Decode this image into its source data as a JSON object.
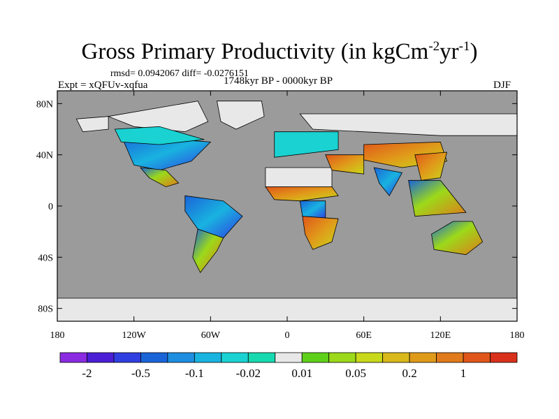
{
  "title": {
    "main": "Gross Primary Productivity (in kgCm",
    "exp1": "-2",
    "mid": "yr",
    "exp2": "-1",
    "close": ")"
  },
  "subtitle": {
    "stats": "rmsd= 0.0942067 diff= -0.0276151",
    "experiment": "Expt = xQFUv-xqfua",
    "period": "1748kyr BP - 0000kyr BP",
    "season": "DJF"
  },
  "axes": {
    "y_ticks": [
      {
        "value": 80,
        "label": "80N"
      },
      {
        "value": 40,
        "label": "40N"
      },
      {
        "value": 0,
        "label": "0"
      },
      {
        "value": -40,
        "label": "40S"
      },
      {
        "value": -80,
        "label": "80S"
      }
    ],
    "x_ticks": [
      {
        "value": -180,
        "label": "180"
      },
      {
        "value": -120,
        "label": "120W"
      },
      {
        "value": -60,
        "label": "60W"
      },
      {
        "value": 0,
        "label": "0"
      },
      {
        "value": 60,
        "label": "60E"
      },
      {
        "value": 120,
        "label": "120E"
      },
      {
        "value": 180,
        "label": "180"
      }
    ],
    "lon_range": [
      -180,
      180
    ],
    "lat_range": [
      -90,
      90
    ]
  },
  "colors": {
    "ocean": "#9b9b9b",
    "no_change": "#e8e8e8",
    "coast": "#000000"
  },
  "colorbar": {
    "colors": [
      "#8a2be2",
      "#4b1ed6",
      "#2f3ee0",
      "#1a64d8",
      "#1e8ee0",
      "#19b3e0",
      "#1ad2d2",
      "#17d9b0",
      "#e8e8e8",
      "#5fd01a",
      "#9cd91a",
      "#c8d81a",
      "#d8b81a",
      "#e09a1a",
      "#e07a1a",
      "#e0561a",
      "#d8301a"
    ],
    "labels": [
      {
        "after_box": 1,
        "text": "-2"
      },
      {
        "after_box": 3,
        "text": "-0.5"
      },
      {
        "after_box": 5,
        "text": "-0.1"
      },
      {
        "after_box": 7,
        "text": "-0.02"
      },
      {
        "after_box": 9,
        "text": "0.01"
      },
      {
        "after_box": 11,
        "text": "0.05"
      },
      {
        "after_box": 13,
        "text": "0.2"
      },
      {
        "after_box": 15,
        "text": "1"
      }
    ]
  },
  "regions": [
    {
      "name": "greenland",
      "class": "no-change",
      "pts": [
        [
          -55,
          82
        ],
        [
          -20,
          82
        ],
        [
          -18,
          70
        ],
        [
          -40,
          60
        ],
        [
          -52,
          66
        ]
      ]
    },
    {
      "name": "arctic-canada",
      "class": "no-change",
      "pts": [
        [
          -140,
          70
        ],
        [
          -70,
          82
        ],
        [
          -62,
          66
        ],
        [
          -80,
          58
        ],
        [
          -120,
          62
        ]
      ]
    },
    {
      "name": "alaska",
      "class": "no-change",
      "pts": [
        [
          -165,
          68
        ],
        [
          -140,
          70
        ],
        [
          -140,
          60
        ],
        [
          -160,
          58
        ]
      ]
    },
    {
      "name": "north-america-low",
      "class": "low",
      "pts": [
        [
          -130,
          55
        ],
        [
          -60,
          50
        ],
        [
          -75,
          35
        ],
        [
          -100,
          28
        ],
        [
          -120,
          32
        ]
      ]
    },
    {
      "name": "north-america-teal",
      "class": "teal",
      "pts": [
        [
          -135,
          60
        ],
        [
          -100,
          62
        ],
        [
          -65,
          52
        ],
        [
          -100,
          48
        ],
        [
          -130,
          50
        ]
      ]
    },
    {
      "name": "mexico",
      "class": "mixed",
      "pts": [
        [
          -115,
          30
        ],
        [
          -95,
          28
        ],
        [
          -85,
          18
        ],
        [
          -95,
          15
        ],
        [
          -108,
          22
        ]
      ]
    },
    {
      "name": "sahara",
      "class": "no-change",
      "pts": [
        [
          -17,
          30
        ],
        [
          35,
          30
        ],
        [
          35,
          15
        ],
        [
          -17,
          15
        ]
      ]
    },
    {
      "name": "west-africa",
      "class": "warm",
      "pts": [
        [
          -17,
          15
        ],
        [
          35,
          15
        ],
        [
          40,
          8
        ],
        [
          10,
          4
        ],
        [
          -10,
          5
        ]
      ]
    },
    {
      "name": "congo",
      "class": "low",
      "pts": [
        [
          10,
          4
        ],
        [
          30,
          4
        ],
        [
          30,
          -10
        ],
        [
          12,
          -8
        ]
      ]
    },
    {
      "name": "southern-africa",
      "class": "warm",
      "pts": [
        [
          12,
          -8
        ],
        [
          40,
          -10
        ],
        [
          35,
          -28
        ],
        [
          20,
          -34
        ],
        [
          14,
          -22
        ]
      ]
    },
    {
      "name": "amazon",
      "class": "low",
      "pts": [
        [
          -80,
          8
        ],
        [
          -50,
          4
        ],
        [
          -35,
          -8
        ],
        [
          -50,
          -25
        ],
        [
          -70,
          -18
        ],
        [
          -80,
          -4
        ]
      ]
    },
    {
      "name": "south-america-south",
      "class": "mixed",
      "pts": [
        [
          -70,
          -18
        ],
        [
          -50,
          -25
        ],
        [
          -55,
          -35
        ],
        [
          -68,
          -52
        ],
        [
          -74,
          -40
        ]
      ]
    },
    {
      "name": "eurasia-north",
      "class": "no-change",
      "pts": [
        [
          10,
          72
        ],
        [
          180,
          72
        ],
        [
          180,
          55
        ],
        [
          120,
          55
        ],
        [
          60,
          58
        ],
        [
          20,
          60
        ]
      ]
    },
    {
      "name": "europe",
      "class": "teal",
      "pts": [
        [
          -10,
          58
        ],
        [
          40,
          58
        ],
        [
          40,
          44
        ],
        [
          -10,
          38
        ]
      ]
    },
    {
      "name": "middle-east",
      "class": "warm",
      "pts": [
        [
          30,
          40
        ],
        [
          60,
          40
        ],
        [
          60,
          25
        ],
        [
          35,
          28
        ]
      ]
    },
    {
      "name": "central-asia",
      "class": "warm",
      "pts": [
        [
          60,
          48
        ],
        [
          120,
          50
        ],
        [
          125,
          35
        ],
        [
          90,
          30
        ],
        [
          60,
          36
        ]
      ]
    },
    {
      "name": "india",
      "class": "low",
      "pts": [
        [
          68,
          30
        ],
        [
          90,
          26
        ],
        [
          80,
          8
        ],
        [
          72,
          18
        ]
      ]
    },
    {
      "name": "east-asia",
      "class": "warm",
      "pts": [
        [
          100,
          40
        ],
        [
          125,
          42
        ],
        [
          120,
          22
        ],
        [
          105,
          20
        ]
      ]
    },
    {
      "name": "southeast-asia",
      "class": "mixed",
      "pts": [
        [
          95,
          20
        ],
        [
          120,
          20
        ],
        [
          140,
          -5
        ],
        [
          100,
          -8
        ]
      ]
    },
    {
      "name": "australia",
      "class": "mixed",
      "pts": [
        [
          113,
          -22
        ],
        [
          130,
          -12
        ],
        [
          145,
          -12
        ],
        [
          153,
          -28
        ],
        [
          140,
          -38
        ],
        [
          115,
          -34
        ]
      ]
    },
    {
      "name": "antarctica",
      "class": "no-change",
      "pts": [
        [
          -180,
          -72
        ],
        [
          180,
          -72
        ],
        [
          180,
          -90
        ],
        [
          -180,
          -90
        ]
      ]
    }
  ]
}
